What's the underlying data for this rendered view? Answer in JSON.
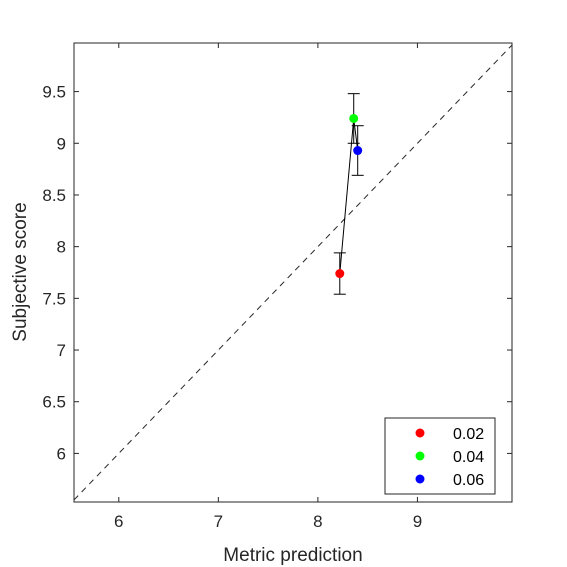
{
  "chart_data": {
    "type": "scatter",
    "xlabel": "Metric prediction",
    "ylabel": "Subjective score",
    "xlim": [
      5.55,
      9.95
    ],
    "ylim": [
      5.53,
      9.97
    ],
    "xticks": [
      6,
      7,
      8,
      9
    ],
    "yticks": [
      6,
      6.5,
      7,
      7.5,
      8,
      8.5,
      9,
      9.5
    ],
    "xtick_labels": [
      "6",
      "7",
      "8",
      "9"
    ],
    "ytick_labels": [
      "6",
      "6.5",
      "7",
      "7.5",
      "8",
      "8.5",
      "9",
      "9.5"
    ],
    "grid": false,
    "identity_line": true,
    "legend_position": "bottom-right",
    "connect_points": true,
    "series": [
      {
        "name": "0.02",
        "color": "#ff0000",
        "x": 8.22,
        "y": 7.74,
        "err_low": 7.54,
        "err_high": 7.94
      },
      {
        "name": "0.04",
        "color": "#00ff00",
        "x": 8.36,
        "y": 9.24,
        "err_low": 9.0,
        "err_high": 9.48
      },
      {
        "name": "0.06",
        "color": "#0000ff",
        "x": 8.4,
        "y": 8.93,
        "err_low": 8.69,
        "err_high": 9.17
      }
    ]
  }
}
